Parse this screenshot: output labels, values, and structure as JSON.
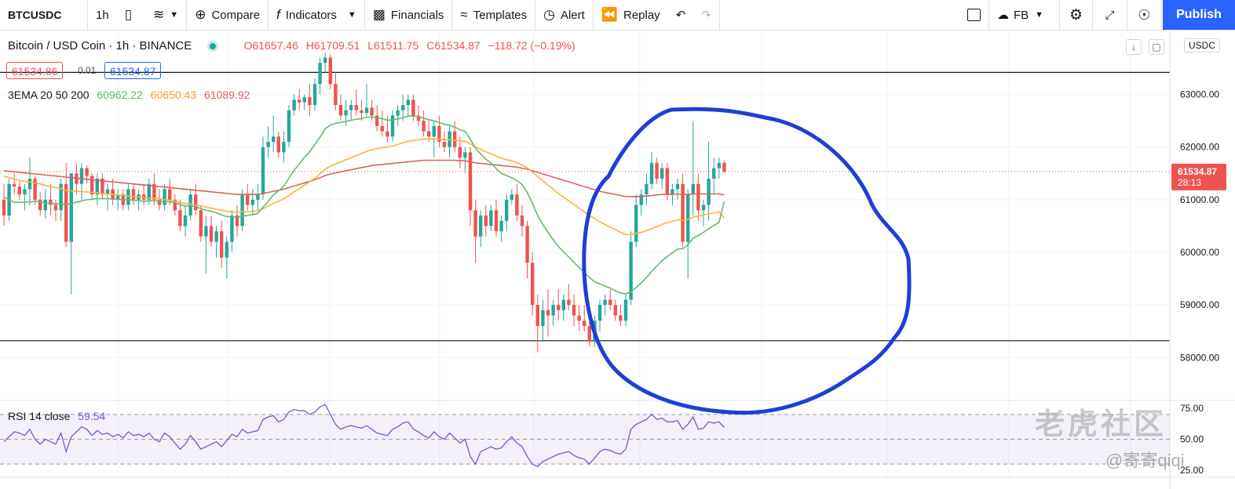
{
  "toolbar": {
    "symbol": "BTCUSDC",
    "interval": "1h",
    "compare": "Compare",
    "indicators": "Indicators",
    "financials": "Financials",
    "templates": "Templates",
    "alert": "Alert",
    "replay": "Replay",
    "layout": "FB",
    "publish": "Publish"
  },
  "legend": {
    "title": "Bitcoin / USD Coin · 1h · BINANCE",
    "open": "O61657.46",
    "high": "H61709.51",
    "low": "L61511.75",
    "close": "C61534.87",
    "change": "−118.72 (−0.19%)",
    "bid": "61534.86",
    "spread": "0.01",
    "ask": "61534.87"
  },
  "ema_legend": {
    "label": "3EMA 20 50 200",
    "ema20": "60962.22",
    "ema50": "60650.43",
    "ema200": "61089.92"
  },
  "rsi_legend": {
    "label": "RSI 14 close",
    "value": "59.54"
  },
  "axis": {
    "currency": "USDC",
    "last_price": "61534.87",
    "countdown": "28:13"
  },
  "watermark": {
    "text": "老虎社区",
    "user": "@寄寄qiqi"
  },
  "colors": {
    "up": "#26a69a",
    "down": "#ef5350",
    "ema20": "#66bb6a",
    "ema50": "#f6b343",
    "ema200": "#d9625f",
    "rsi": "#7e57c2",
    "annotation": "#1f3fd6"
  },
  "chart_data": {
    "type": "candlestick",
    "y_range": [
      57200,
      64200
    ],
    "y_ticks": [
      "58000.00",
      "59000.00",
      "60000.00",
      "61000.00",
      "62000.00",
      "63000.00"
    ],
    "horizontal_lines": [
      63420,
      58320
    ],
    "candles": [
      [
        61000,
        61300,
        60500,
        60700
      ],
      [
        60700,
        61400,
        60600,
        61300
      ],
      [
        61300,
        61500,
        61100,
        61250
      ],
      [
        61250,
        61350,
        61000,
        61100
      ],
      [
        61100,
        61300,
        60800,
        61200
      ],
      [
        61200,
        61800,
        60900,
        61400
      ],
      [
        61400,
        61450,
        60900,
        61000
      ],
      [
        61000,
        61150,
        60700,
        60800
      ],
      [
        60800,
        61200,
        60650,
        61000
      ],
      [
        61000,
        61300,
        60700,
        60900
      ],
      [
        60900,
        61000,
        60600,
        60800
      ],
      [
        60800,
        61400,
        60600,
        61300
      ],
      [
        61300,
        61700,
        60100,
        60200
      ],
      [
        60200,
        61500,
        59200,
        61500
      ],
      [
        61500,
        61700,
        61100,
        61300
      ],
      [
        61300,
        61700,
        61000,
        61600
      ],
      [
        61600,
        61650,
        61300,
        61450
      ],
      [
        61450,
        61500,
        61000,
        61100
      ],
      [
        61100,
        61500,
        60900,
        61400
      ],
      [
        61400,
        61500,
        61000,
        61100
      ],
      [
        61100,
        61300,
        60800,
        61200
      ],
      [
        61200,
        61400,
        60900,
        61000
      ],
      [
        61000,
        61200,
        60800,
        61100
      ],
      [
        61100,
        61200,
        60800,
        60900
      ],
      [
        60900,
        61300,
        60800,
        61200
      ],
      [
        61200,
        61300,
        60900,
        61000
      ],
      [
        61000,
        61200,
        60800,
        61100
      ],
      [
        61100,
        61300,
        60900,
        61000
      ],
      [
        61000,
        61400,
        60900,
        61300
      ],
      [
        61300,
        61500,
        60900,
        61000
      ],
      [
        61000,
        61200,
        60800,
        60900
      ],
      [
        60900,
        61300,
        60800,
        61200
      ],
      [
        61200,
        61400,
        60900,
        61000
      ],
      [
        61000,
        61100,
        60700,
        60800
      ],
      [
        60800,
        61000,
        60400,
        60500
      ],
      [
        60500,
        60900,
        60300,
        60700
      ],
      [
        60700,
        61200,
        60600,
        61100
      ],
      [
        61100,
        61300,
        60700,
        60800
      ],
      [
        60800,
        60900,
        60200,
        60300
      ],
      [
        60300,
        60700,
        59600,
        60500
      ],
      [
        60500,
        60700,
        60100,
        60200
      ],
      [
        60200,
        60500,
        59900,
        60400
      ],
      [
        60400,
        60600,
        59700,
        59900
      ],
      [
        59900,
        60300,
        59500,
        60200
      ],
      [
        60200,
        60800,
        60000,
        60700
      ],
      [
        60700,
        60900,
        60300,
        60500
      ],
      [
        60500,
        61200,
        60400,
        61100
      ],
      [
        61100,
        61300,
        60800,
        60900
      ],
      [
        60900,
        61200,
        60700,
        61000
      ],
      [
        61000,
        61300,
        60800,
        61100
      ],
      [
        61100,
        62200,
        61000,
        62000
      ],
      [
        62000,
        62400,
        61800,
        62100
      ],
      [
        62100,
        62600,
        61900,
        62200
      ],
      [
        62200,
        62300,
        61800,
        61900
      ],
      [
        61900,
        62300,
        61700,
        62100
      ],
      [
        62100,
        62800,
        62000,
        62700
      ],
      [
        62700,
        63000,
        62600,
        62900
      ],
      [
        62900,
        63100,
        62700,
        62850
      ],
      [
        62850,
        63000,
        62700,
        62950
      ],
      [
        62950,
        63200,
        62600,
        62800
      ],
      [
        62800,
        63300,
        62700,
        63200
      ],
      [
        63200,
        63700,
        63000,
        63600
      ],
      [
        63600,
        63800,
        63400,
        63700
      ],
      [
        63700,
        63750,
        63100,
        63200
      ],
      [
        63200,
        63400,
        62700,
        62800
      ],
      [
        62800,
        63000,
        62500,
        62600
      ],
      [
        62600,
        62900,
        62400,
        62700
      ],
      [
        62700,
        62900,
        62500,
        62800
      ],
      [
        62800,
        63100,
        62600,
        62700
      ],
      [
        62700,
        62900,
        62500,
        62650
      ],
      [
        62650,
        63200,
        62600,
        62750
      ],
      [
        62750,
        62900,
        62500,
        62600
      ],
      [
        62600,
        62800,
        62300,
        62400
      ],
      [
        62400,
        62700,
        62200,
        62300
      ],
      [
        62300,
        62600,
        62100,
        62200
      ],
      [
        62200,
        62700,
        62100,
        62600
      ],
      [
        62600,
        62800,
        62400,
        62700
      ],
      [
        62700,
        63000,
        62500,
        62800
      ],
      [
        62800,
        63000,
        62600,
        62900
      ],
      [
        62900,
        63000,
        62500,
        62600
      ],
      [
        62600,
        62800,
        62400,
        62500
      ],
      [
        62500,
        62700,
        62200,
        62300
      ],
      [
        62300,
        62500,
        62100,
        62200
      ],
      [
        62200,
        62500,
        61800,
        62400
      ],
      [
        62400,
        62600,
        62000,
        62100
      ],
      [
        62100,
        62300,
        61900,
        62000
      ],
      [
        62000,
        62400,
        61800,
        62300
      ],
      [
        62300,
        62500,
        61900,
        62000
      ],
      [
        62000,
        62200,
        61600,
        61800
      ],
      [
        61800,
        62000,
        61500,
        61900
      ],
      [
        61900,
        62000,
        60500,
        60800
      ],
      [
        60800,
        61000,
        59800,
        60300
      ],
      [
        60300,
        60800,
        60100,
        60700
      ],
      [
        60700,
        60900,
        60300,
        60500
      ],
      [
        60500,
        60900,
        60400,
        60800
      ],
      [
        60800,
        61000,
        60300,
        60400
      ],
      [
        60400,
        60700,
        60200,
        60600
      ],
      [
        60600,
        61100,
        60400,
        61000
      ],
      [
        61000,
        61200,
        60900,
        61100
      ],
      [
        61100,
        61300,
        60600,
        60700
      ],
      [
        60700,
        60900,
        60300,
        60500
      ],
      [
        60500,
        60600,
        59500,
        59800
      ],
      [
        59800,
        60000,
        58800,
        59000
      ],
      [
        59000,
        59200,
        58100,
        58600
      ],
      [
        58600,
        59100,
        58300,
        58900
      ],
      [
        58900,
        59300,
        58400,
        58800
      ],
      [
        58800,
        59100,
        58600,
        59000
      ],
      [
        59000,
        59300,
        58700,
        58900
      ],
      [
        58900,
        59200,
        58700,
        59100
      ],
      [
        59100,
        59400,
        58900,
        59000
      ],
      [
        59000,
        59200,
        58600,
        58800
      ],
      [
        58800,
        59000,
        58500,
        58700
      ],
      [
        58700,
        59000,
        58500,
        58600
      ],
      [
        58600,
        58900,
        58200,
        58300
      ],
      [
        58300,
        58800,
        58200,
        58700
      ],
      [
        58700,
        59100,
        58500,
        59000
      ],
      [
        59000,
        59200,
        58800,
        59100
      ],
      [
        59100,
        59300,
        58900,
        59000
      ],
      [
        59000,
        59100,
        58700,
        58800
      ],
      [
        58800,
        59000,
        58600,
        58700
      ],
      [
        58700,
        59200,
        58600,
        59100
      ],
      [
        59100,
        60400,
        59000,
        60200
      ],
      [
        60200,
        61100,
        60100,
        60900
      ],
      [
        60900,
        61200,
        60700,
        61100
      ],
      [
        61100,
        61500,
        60900,
        61300
      ],
      [
        61300,
        61900,
        61200,
        61700
      ],
      [
        61700,
        61800,
        61300,
        61400
      ],
      [
        61400,
        61700,
        61200,
        61600
      ],
      [
        61600,
        61700,
        61000,
        61100
      ],
      [
        61100,
        61300,
        60900,
        61200
      ],
      [
        61200,
        61400,
        61000,
        61300
      ],
      [
        61300,
        61500,
        60100,
        60200
      ],
      [
        60200,
        61200,
        59500,
        61100
      ],
      [
        61100,
        62500,
        60700,
        61300
      ],
      [
        61300,
        61500,
        60600,
        60800
      ],
      [
        60800,
        61000,
        60500,
        60900
      ],
      [
        60900,
        62100,
        60600,
        61400
      ],
      [
        61400,
        61800,
        61100,
        61600
      ],
      [
        61600,
        61800,
        61400,
        61700
      ],
      [
        61700,
        61750,
        61510,
        61535
      ]
    ],
    "ema20": [
      61050,
      61000,
      60950,
      60950,
      60950,
      60960,
      60970,
      60960,
      60940,
      60930,
      60920,
      60920,
      60910,
      60930,
      60950,
      60980,
      61000,
      61010,
      61020,
      61020,
      61020,
      61020,
      61010,
      61000,
      61000,
      60990,
      60980,
      60970,
      60980,
      60980,
      60970,
      60960,
      60960,
      60940,
      60910,
      60880,
      60880,
      60870,
      60830,
      60800,
      60780,
      60750,
      60710,
      60680,
      60680,
      60660,
      60690,
      60700,
      60720,
      60740,
      60860,
      60970,
      61090,
      61170,
      61260,
      61410,
      61560,
      61680,
      61810,
      61910,
      62050,
      62190,
      62350,
      62420,
      62450,
      62470,
      62490,
      62510,
      62530,
      62540,
      62570,
      62570,
      62560,
      62540,
      62510,
      62520,
      62530,
      62560,
      62590,
      62590,
      62580,
      62550,
      62520,
      62500,
      62470,
      62430,
      62420,
      62380,
      62330,
      62300,
      62150,
      61980,
      61870,
      61770,
      61700,
      61590,
      61500,
      61460,
      61420,
      61360,
      61290,
      61140,
      60930,
      60700,
      60530,
      60380,
      60240,
      60110,
      60010,
      59910,
      59810,
      59710,
      59620,
      59520,
      59440,
      59400,
      59360,
      59320,
      59270,
      59230,
      59210,
      59250,
      59330,
      59420,
      59520,
      59640,
      59740,
      59840,
      59920,
      59990,
      60060,
      60070,
      60140,
      60270,
      60320,
      60380,
      60450,
      60510,
      60570,
      60962
    ],
    "ema50": [
      61450,
      61420,
      61390,
      61370,
      61350,
      61340,
      61320,
      61300,
      61270,
      61250,
      61230,
      61210,
      61180,
      61170,
      61160,
      61150,
      61150,
      61140,
      61130,
      61120,
      61110,
      61100,
      61090,
      61080,
      61070,
      61060,
      61050,
      61040,
      61030,
      61030,
      61020,
      61000,
      60990,
      60970,
      60950,
      60930,
      60920,
      60900,
      60880,
      60860,
      60840,
      60820,
      60800,
      60780,
      60770,
      60760,
      60770,
      60770,
      60780,
      60790,
      60830,
      60880,
      60930,
      60970,
      61020,
      61080,
      61150,
      61210,
      61280,
      61340,
      61410,
      61490,
      61580,
      61640,
      61680,
      61720,
      61760,
      61800,
      61840,
      61880,
      61920,
      61950,
      61970,
      61990,
      62000,
      62020,
      62050,
      62080,
      62110,
      62130,
      62140,
      62150,
      62150,
      62150,
      62150,
      62140,
      62140,
      62130,
      62120,
      62110,
      62060,
      62000,
      61960,
      61910,
      61870,
      61830,
      61790,
      61760,
      61740,
      61700,
      61660,
      61610,
      61530,
      61440,
      61360,
      61280,
      61200,
      61120,
      61050,
      60980,
      60910,
      60840,
      60770,
      60700,
      60640,
      60580,
      60530,
      60480,
      60430,
      60380,
      60340,
      60340,
      60360,
      60380,
      60410,
      60450,
      60490,
      60530,
      60560,
      60590,
      60620,
      60610,
      60630,
      60670,
      60690,
      60710,
      60730,
      60750,
      60770,
      60650
    ],
    "ema200": [
      61550,
      61540,
      61530,
      61520,
      61510,
      61500,
      61490,
      61480,
      61470,
      61460,
      61450,
      61440,
      61430,
      61420,
      61410,
      61400,
      61390,
      61380,
      61370,
      61360,
      61350,
      61340,
      61330,
      61320,
      61310,
      61300,
      61290,
      61280,
      61270,
      61260,
      61250,
      61240,
      61230,
      61220,
      61210,
      61200,
      61190,
      61180,
      61170,
      61160,
      61150,
      61140,
      61130,
      61120,
      61110,
      61100,
      61100,
      61100,
      61100,
      61100,
      61120,
      61140,
      61160,
      61180,
      61200,
      61230,
      61260,
      61290,
      61320,
      61350,
      61380,
      61420,
      61460,
      61490,
      61510,
      61530,
      61550,
      61570,
      61590,
      61610,
      61630,
      61650,
      61660,
      61670,
      61680,
      61690,
      61700,
      61710,
      61720,
      61730,
      61740,
      61750,
      61750,
      61750,
      61750,
      61750,
      61750,
      61750,
      61740,
      61740,
      61720,
      61700,
      61690,
      61680,
      61670,
      61660,
      61650,
      61640,
      61630,
      61620,
      61600,
      61580,
      61550,
      61520,
      61490,
      61460,
      61430,
      61400,
      61370,
      61340,
      61310,
      61280,
      61250,
      61220,
      61190,
      61160,
      61140,
      61120,
      61100,
      61080,
      61060,
      61060,
      61060,
      61060,
      61070,
      61080,
      61090,
      61100,
      61100,
      61100,
      61110,
      61100,
      61100,
      61110,
      61110,
      61110,
      61110,
      61110,
      61110,
      61090
    ],
    "rsi": [
      48,
      52,
      56,
      55,
      53,
      58,
      50,
      46,
      50,
      48,
      46,
      55,
      40,
      52,
      56,
      60,
      58,
      53,
      57,
      54,
      55,
      52,
      54,
      51,
      56,
      53,
      54,
      52,
      55,
      50,
      48,
      55,
      52,
      47,
      42,
      46,
      53,
      48,
      42,
      44,
      46,
      48,
      44,
      49,
      54,
      52,
      58,
      55,
      56,
      57,
      66,
      68,
      69,
      64,
      66,
      72,
      74,
      73,
      73,
      70,
      72,
      76,
      78,
      70,
      62,
      58,
      60,
      61,
      60,
      59,
      61,
      58,
      55,
      54,
      53,
      58,
      60,
      63,
      64,
      58,
      56,
      53,
      51,
      56,
      52,
      50,
      55,
      51,
      47,
      50,
      36,
      30,
      40,
      42,
      44,
      42,
      43,
      48,
      52,
      47,
      44,
      36,
      30,
      28,
      32,
      34,
      36,
      38,
      39,
      40,
      37,
      35,
      34,
      30,
      35,
      40,
      42,
      41,
      39,
      38,
      42,
      58,
      62,
      64,
      66,
      70,
      66,
      67,
      64,
      64,
      65,
      58,
      62,
      68,
      58,
      59,
      64,
      63,
      64,
      59.5
    ],
    "rsi_range": [
      20,
      80
    ],
    "rsi_levels": [
      70,
      50,
      30
    ],
    "rsi_ticks": [
      "75.00",
      "50.00",
      "25.00"
    ]
  }
}
